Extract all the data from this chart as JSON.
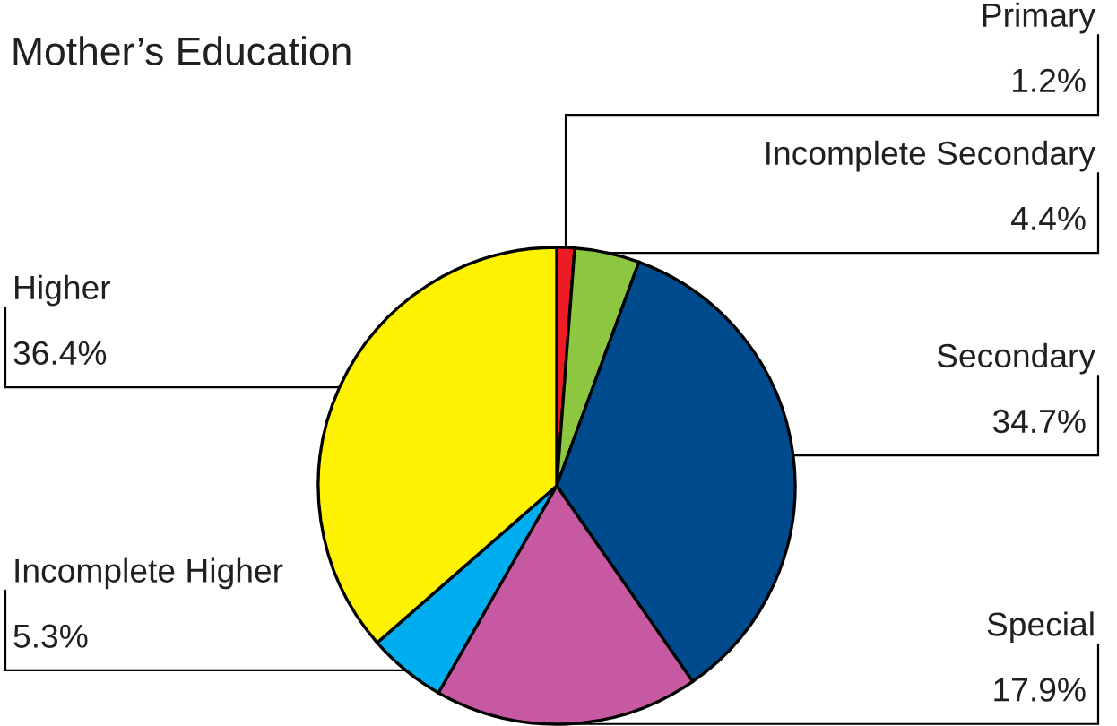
{
  "chart_data": {
    "type": "pie",
    "title": "Mother’s Education",
    "categories": [
      "Primary",
      "Incomplete Secondary",
      "Secondary",
      "Special",
      "Incomplete Higher",
      "Higher"
    ],
    "values": [
      1.2,
      4.4,
      34.7,
      17.9,
      5.3,
      36.4
    ],
    "colors": [
      "#ed1c24",
      "#8dc63f",
      "#004b8d",
      "#c659a1",
      "#00aeef",
      "#fff200"
    ],
    "value_labels": [
      "1.2%",
      "4.4%",
      "34.7%",
      "17.9%",
      "5.3%",
      "36.4%"
    ]
  }
}
